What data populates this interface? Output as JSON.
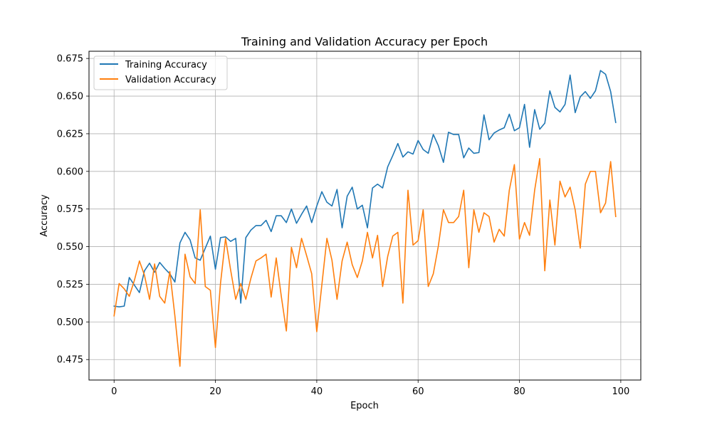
{
  "chart_data": {
    "type": "line",
    "title": "Training and Validation Accuracy per Epoch",
    "xlabel": "Epoch",
    "ylabel": "Accuracy",
    "xlim": [
      -4.95,
      103.95
    ],
    "ylim": [
      0.4614,
      0.6798
    ],
    "xticks": [
      0,
      20,
      40,
      60,
      80,
      100
    ],
    "yticks": [
      0.475,
      0.5,
      0.525,
      0.55,
      0.575,
      0.6,
      0.625,
      0.65,
      0.675
    ],
    "ytick_labels": [
      "0.475",
      "0.500",
      "0.525",
      "0.550",
      "0.575",
      "0.600",
      "0.625",
      "0.650",
      "0.675"
    ],
    "grid": true,
    "legend_position": "upper-left",
    "series": [
      {
        "name": "Training Accuracy",
        "color": "#1f77b4",
        "values": [
          0.5105,
          0.51,
          0.5105,
          0.5295,
          0.5245,
          0.5195,
          0.534,
          0.539,
          0.533,
          0.5395,
          0.5355,
          0.532,
          0.5265,
          0.5525,
          0.5595,
          0.5545,
          0.5425,
          0.541,
          0.549,
          0.557,
          0.535,
          0.556,
          0.5565,
          0.5535,
          0.5555,
          0.5125,
          0.556,
          0.561,
          0.564,
          0.564,
          0.5675,
          0.56,
          0.5705,
          0.5705,
          0.566,
          0.575,
          0.5655,
          0.5715,
          0.577,
          0.566,
          0.577,
          0.5865,
          0.5795,
          0.577,
          0.588,
          0.5625,
          0.5835,
          0.5895,
          0.575,
          0.5775,
          0.5625,
          0.589,
          0.5915,
          0.589,
          0.603,
          0.6105,
          0.6185,
          0.6095,
          0.613,
          0.6115,
          0.6205,
          0.6145,
          0.612,
          0.6245,
          0.617,
          0.606,
          0.626,
          0.6245,
          0.6245,
          0.609,
          0.6155,
          0.612,
          0.6125,
          0.6375,
          0.621,
          0.6255,
          0.6275,
          0.629,
          0.638,
          0.627,
          0.629,
          0.6445,
          0.616,
          0.641,
          0.628,
          0.632,
          0.6535,
          0.6425,
          0.6395,
          0.6445,
          0.664,
          0.639,
          0.6495,
          0.653,
          0.6485,
          0.6535,
          0.667,
          0.6645,
          0.653,
          0.6325
        ]
      },
      {
        "name": "Validation Accuracy",
        "color": "#ff7f0e",
        "values": [
          0.504,
          0.5255,
          0.522,
          0.517,
          0.5275,
          0.5405,
          0.531,
          0.515,
          0.5385,
          0.517,
          0.5125,
          0.5335,
          0.504,
          0.4705,
          0.545,
          0.53,
          0.5255,
          0.5745,
          0.5235,
          0.521,
          0.483,
          0.5255,
          0.5555,
          0.5345,
          0.515,
          0.5255,
          0.515,
          0.529,
          0.5405,
          0.5425,
          0.545,
          0.5165,
          0.5425,
          0.517,
          0.494,
          0.5495,
          0.536,
          0.5555,
          0.544,
          0.532,
          0.4935,
          0.5245,
          0.5555,
          0.541,
          0.515,
          0.5405,
          0.553,
          0.538,
          0.5295,
          0.5405,
          0.5595,
          0.5425,
          0.5575,
          0.5235,
          0.5435,
          0.557,
          0.5595,
          0.5125,
          0.5875,
          0.551,
          0.554,
          0.5745,
          0.5235,
          0.532,
          0.5505,
          0.5745,
          0.566,
          0.566,
          0.57,
          0.5875,
          0.536,
          0.5745,
          0.5595,
          0.5725,
          0.57,
          0.553,
          0.5615,
          0.557,
          0.5875,
          0.6045,
          0.555,
          0.566,
          0.5575,
          0.5875,
          0.6085,
          0.534,
          0.581,
          0.551,
          0.5935,
          0.583,
          0.5895,
          0.5745,
          0.549,
          0.5915,
          0.6,
          0.6,
          0.5725,
          0.579,
          0.6065,
          0.57
        ]
      }
    ]
  }
}
